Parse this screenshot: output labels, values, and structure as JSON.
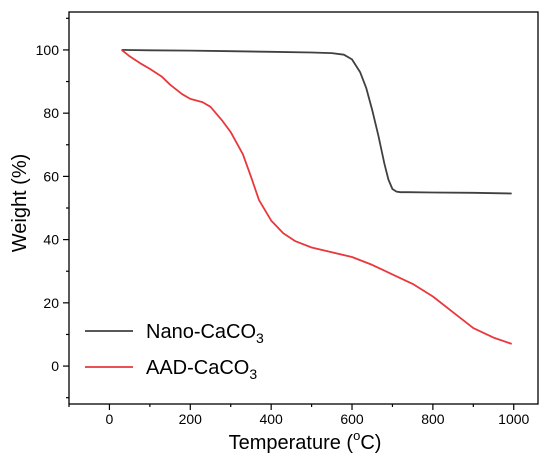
{
  "chart_data": {
    "type": "line",
    "xlabel_main": "Temperature (",
    "xlabel_sup": "o",
    "xlabel_unit": "C)",
    "ylabel": "Weight (%)",
    "xlim": [
      -100,
      1060
    ],
    "ylim": [
      -12,
      112
    ],
    "xticks": [
      0,
      200,
      400,
      600,
      800,
      1000
    ],
    "yticks": [
      0,
      20,
      40,
      60,
      80,
      100
    ],
    "legend_position": "bottom-left",
    "series": [
      {
        "name_main": "Nano-CaCO",
        "name_sub": "3",
        "color": "#404040",
        "x": [
          30,
          100,
          200,
          300,
          400,
          500,
          550,
          580,
          600,
          620,
          635,
          650,
          665,
          680,
          690,
          700,
          710,
          720,
          740,
          800,
          900,
          995
        ],
        "y": [
          100,
          99.9,
          99.8,
          99.6,
          99.4,
          99.2,
          99.0,
          98.5,
          97.0,
          93.0,
          88.0,
          81.0,
          73.0,
          64.0,
          59.0,
          56.0,
          55.2,
          55.0,
          55.0,
          54.9,
          54.8,
          54.6
        ]
      },
      {
        "name_main": "AAD-CaCO",
        "name_sub": "3",
        "color": "#e8383b",
        "x": [
          30,
          50,
          80,
          100,
          130,
          150,
          180,
          200,
          230,
          250,
          280,
          300,
          330,
          350,
          370,
          400,
          430,
          460,
          500,
          550,
          600,
          650,
          700,
          750,
          800,
          850,
          900,
          950,
          995
        ],
        "y": [
          100,
          98,
          95.5,
          94,
          91.5,
          89,
          86,
          84.5,
          83.5,
          82,
          77.5,
          74,
          67,
          60,
          52.5,
          46,
          42,
          39.5,
          37.5,
          36,
          34.5,
          32,
          29,
          26,
          22,
          17,
          12,
          9,
          7
        ]
      }
    ]
  }
}
